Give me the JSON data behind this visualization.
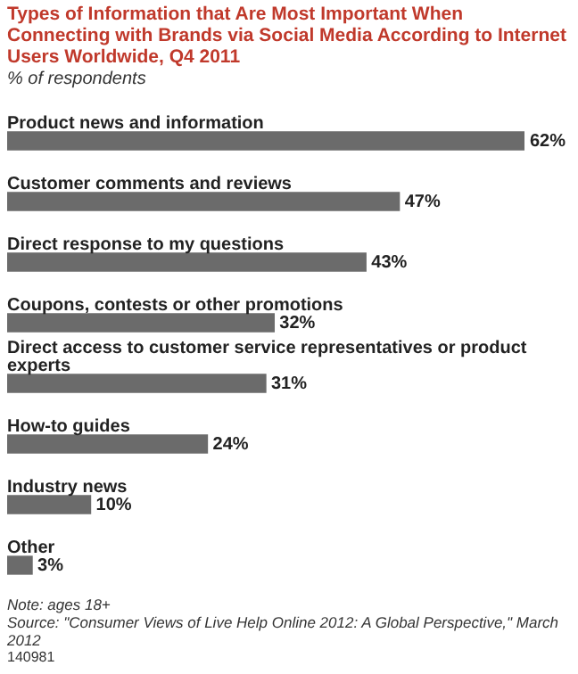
{
  "chart_data": {
    "type": "bar",
    "orientation": "horizontal",
    "title": "Types of Information that Are Most Important When Connecting with Brands via Social Media According to Internet Users Worldwide, Q4 2011",
    "subtitle": "% of respondents",
    "categories": [
      "Product news and information",
      "Customer comments and reviews",
      "Direct response to my questions",
      "Coupons, contests or other promotions",
      "Direct access to customer service representatives or product experts",
      "How-to guides",
      "Industry news",
      "Other"
    ],
    "values": [
      62,
      47,
      43,
      32,
      31,
      24,
      10,
      3
    ],
    "value_labels": [
      "62%",
      "47%",
      "43%",
      "32%",
      "31%",
      "24%",
      "10%",
      "3%"
    ],
    "color": "#6b6b6b",
    "legend": false,
    "annotations": [
      "Note: ages 18+",
      "Source: \"Consumer Views of Live Help Online 2012: A Global Perspective,\" March 2012",
      "140981"
    ]
  }
}
